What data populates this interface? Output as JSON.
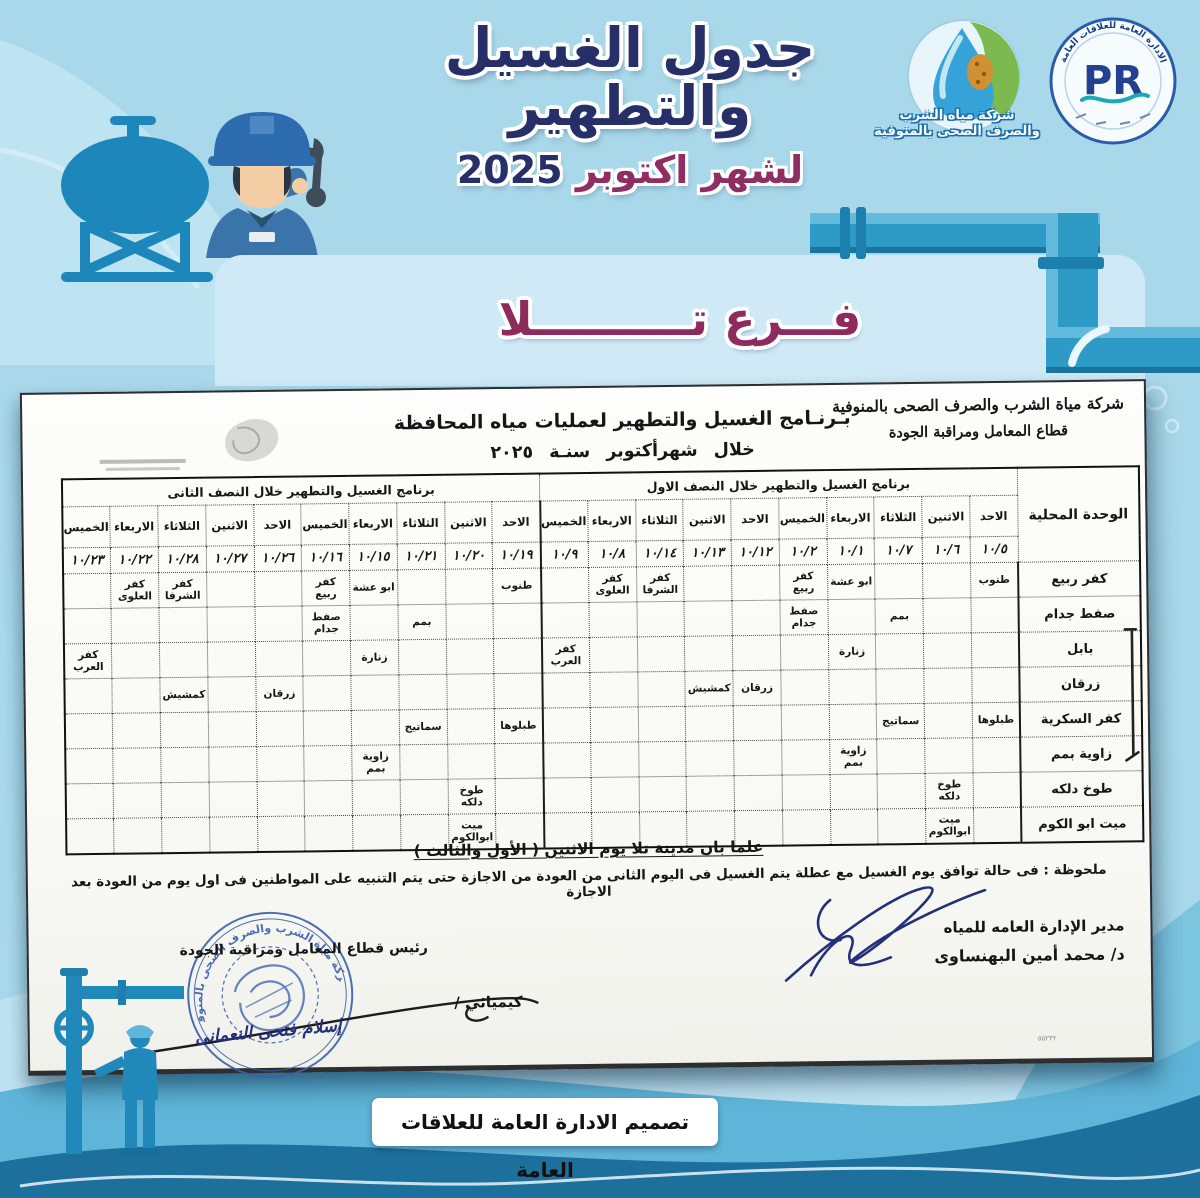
{
  "poster": {
    "title": "جدول الغسيل والتطهير",
    "month_label": "لشهر اكتوبر",
    "year": "2025",
    "branch": "فـــرع تــــــــــلا",
    "credit": "تصميم الادارة العامة للعلاقات العامة",
    "colors": {
      "background": "#a9d8ea",
      "title_navy": "#272f68",
      "accent_maroon": "#8e2e62",
      "panel_light": "#cfeaf6",
      "pipe_blue": "#2e9ac6",
      "wave_dark": "#1d6f9c",
      "stamp_blue": "#3a5fae",
      "pen_blue": "#23307a"
    },
    "icons": {
      "worker": "worker-with-wrench-icon",
      "tank": "water-tank-icon",
      "pipes": "water-pipe-elbow-icon",
      "bottom_worker": "plumber-with-valve-icon"
    }
  },
  "logos": {
    "company": {
      "line1": "شركة مياه الشرب",
      "line2": "والصرف الصحى بالمنوفية"
    },
    "pr": {
      "monogram": "PR",
      "ring_text": "الادارة العامة للعلاقات العامة"
    }
  },
  "document": {
    "company_header_line1": "شركة مياة الشرب والصرف الصحى بالمنوفية",
    "company_header_line2": "قطاع المعامل ومراقبة الجودة",
    "title_line1": "بـرنـامج الغسيل والتطهير لعمليات مياه المحافظة",
    "title_line2": "خلال شهرأكتوبر سنـة ٢٠٢٥",
    "table": {
      "unit_header": "الوحدة المحلية",
      "first_half_header": "برنامج الغسيل والتطهير خلال النصف الاول",
      "second_half_header": "برنامج الغسيل والتطهير خلال النصف الثانى",
      "first_half_days": [
        {
          "day": "الاحد",
          "date": "١٠/٥"
        },
        {
          "day": "الاثنين",
          "date": "١٠/٦"
        },
        {
          "day": "الثلاثاء",
          "date": "١٠/٧"
        },
        {
          "day": "الاربعاء",
          "date": "١٠/١"
        },
        {
          "day": "الخميس",
          "date": "١٠/٢"
        },
        {
          "day": "الاحد",
          "date": "١٠/١٢"
        },
        {
          "day": "الاثنين",
          "date": "١٠/١٣"
        },
        {
          "day": "الثلاثاء",
          "date": "١٠/١٤"
        },
        {
          "day": "الاربعاء",
          "date": "١٠/٨"
        },
        {
          "day": "الخميس",
          "date": "١٠/٩"
        }
      ],
      "second_half_days": [
        {
          "day": "الاحد",
          "date": "١٠/١٩"
        },
        {
          "day": "الاثنين",
          "date": "١٠/٢٠"
        },
        {
          "day": "الثلاثاء",
          "date": "١٠/٢١"
        },
        {
          "day": "الاربعاء",
          "date": "١٠/١٥"
        },
        {
          "day": "الخميس",
          "date": "١٠/١٦"
        },
        {
          "day": "الاحد",
          "date": "١٠/٢٦"
        },
        {
          "day": "الاثنين",
          "date": "١٠/٢٧"
        },
        {
          "day": "الثلاثاء",
          "date": "١٠/٢٨"
        },
        {
          "day": "الاربعاء",
          "date": "١٠/٢٢"
        },
        {
          "day": "الخميس",
          "date": "١٠/٢٣"
        }
      ],
      "rows": [
        {
          "unit": "كفر ربيع",
          "first_half": [
            "طنوب",
            "",
            "",
            "ابو عشة",
            "كفر ربيع",
            "",
            "",
            "كفر الشرفا",
            "كفر العلوى",
            ""
          ],
          "second_half": [
            "طنوب",
            "",
            "",
            "ابو عشة",
            "كفر ربيع",
            "",
            "",
            "كفر الشرفا",
            "كفر العلوى",
            ""
          ]
        },
        {
          "unit": "صفط جدام",
          "first_half": [
            "",
            "",
            "بمم",
            "",
            "صفط جدام",
            "",
            "",
            "",
            "",
            ""
          ],
          "second_half": [
            "",
            "",
            "بمم",
            "",
            "صفط جدام",
            "",
            "",
            "",
            "",
            ""
          ]
        },
        {
          "unit": "بابل",
          "first_half": [
            "",
            "",
            "",
            "زنارة",
            "",
            "",
            "",
            "",
            "",
            "كفر العرب"
          ],
          "second_half": [
            "",
            "",
            "",
            "زنارة",
            "",
            "",
            "",
            "",
            "",
            "كفر العرب"
          ]
        },
        {
          "unit": "زرقان",
          "first_half": [
            "",
            "",
            "",
            "",
            "",
            "زرقان",
            "كمشيش",
            "",
            "",
            ""
          ],
          "second_half": [
            "",
            "",
            "",
            "",
            "",
            "زرقان",
            "",
            "كمشيش",
            "",
            ""
          ]
        },
        {
          "unit": "كفر السكرية",
          "first_half": [
            "طبلوها",
            "",
            "سماتيج",
            "",
            "",
            "",
            "",
            "",
            "",
            ""
          ],
          "second_half": [
            "طبلوها",
            "",
            "سماتيج",
            "",
            "",
            "",
            "",
            "",
            "",
            ""
          ]
        },
        {
          "unit": "زاوية بمم",
          "first_half": [
            "",
            "",
            "",
            "زاوية بمم",
            "",
            "",
            "",
            "",
            "",
            ""
          ],
          "second_half": [
            "",
            "",
            "",
            "زاوية بمم",
            "",
            "",
            "",
            "",
            "",
            ""
          ]
        },
        {
          "unit": "طوخ دلكه",
          "first_half": [
            "",
            "طوخ دلكه",
            "",
            "",
            "",
            "",
            "",
            "",
            "",
            ""
          ],
          "second_half": [
            "",
            "طوخ دلكه",
            "",
            "",
            "",
            "",
            "",
            "",
            "",
            ""
          ]
        },
        {
          "unit": "ميت ابو الكوم",
          "first_half": [
            "",
            "ميت ابوالكوم",
            "",
            "",
            "",
            "",
            "",
            "",
            "",
            ""
          ],
          "second_half": [
            "",
            "ميت ابوالكوم",
            "",
            "",
            "",
            "",
            "",
            "",
            "",
            ""
          ]
        }
      ]
    },
    "note_center": "علما بان مدينة تلا يوم الاثنين ( الأول والثالث )",
    "note_bottom": "ملحوظة : فى حالة توافق يوم الغسيل مع عطلة يتم الغسيل فى اليوم الثانى من العودة من الاجازة حتى يتم التنبيه على المواطنين فى اول يوم من العودة بعد الاجازة",
    "signature_right": {
      "title": "مدير الإدارة العامه للمياه",
      "name": "د/ محمد أمين البهنساوى"
    },
    "signature_left": {
      "title": "رئيس قطاع المعامل ومراقبة الجودة",
      "role": "كيميائي /",
      "name": "إسلام فتحى النعمانى"
    },
    "stamp_ring_text": "شركة مياة الشرب والصرف الصحى بالمنوفية",
    "corner_mark": "٥٥٢٣٢"
  }
}
